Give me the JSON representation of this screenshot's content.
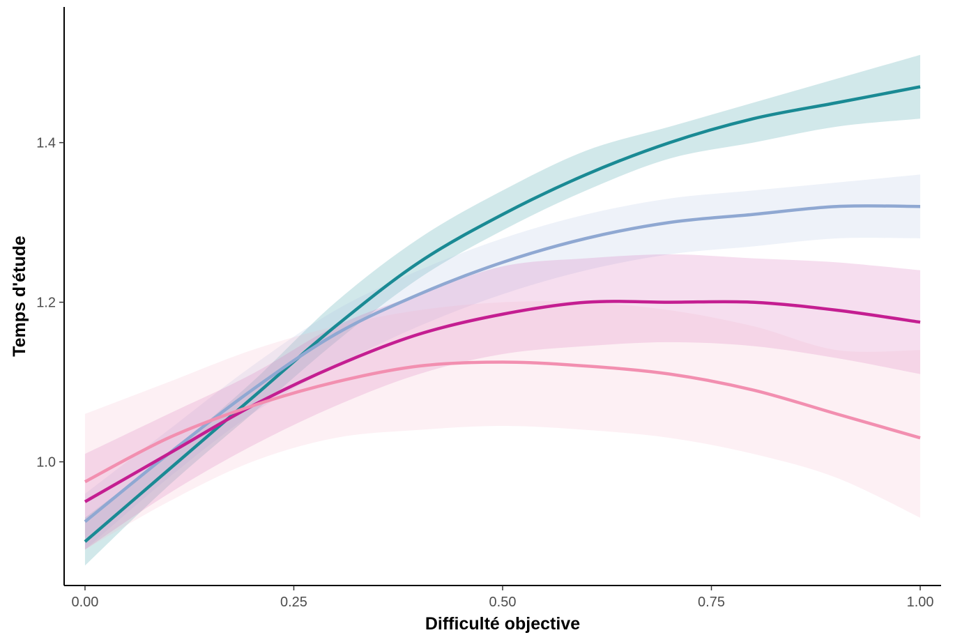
{
  "chart_data": {
    "type": "line",
    "title": "",
    "xlabel": "Difficulté objective",
    "ylabel": "Temps d'étude",
    "xlim": [
      -0.025,
      1.025
    ],
    "ylim": [
      0.845,
      1.57
    ],
    "x_ticks": [
      0,
      0.25,
      0.5,
      0.75,
      1
    ],
    "x_tick_labels": [
      "0.00",
      "0.25",
      "0.50",
      "0.75",
      "1.00"
    ],
    "y_ticks": [
      1.0,
      1.2,
      1.4
    ],
    "y_tick_labels": [
      "1.0",
      "1.2",
      "1.4"
    ],
    "grid": false,
    "legend": "none",
    "x": [
      0,
      0.1,
      0.2,
      0.3,
      0.4,
      0.5,
      0.6,
      0.7,
      0.8,
      0.9,
      1.0
    ],
    "series": [
      {
        "color": "#1a8a94",
        "band_color": "#1a8a94",
        "values": [
          0.9,
          0.99,
          1.08,
          1.17,
          1.25,
          1.31,
          1.36,
          1.4,
          1.43,
          1.45,
          1.47
        ],
        "lower": [
          0.87,
          0.97,
          1.06,
          1.15,
          1.23,
          1.29,
          1.34,
          1.38,
          1.4,
          1.42,
          1.43
        ],
        "upper": [
          0.93,
          1.01,
          1.1,
          1.2,
          1.28,
          1.34,
          1.39,
          1.42,
          1.45,
          1.48,
          1.51
        ]
      },
      {
        "color": "#8fa8d2",
        "band_color": "#a8bde0",
        "values": [
          0.925,
          1.01,
          1.09,
          1.16,
          1.21,
          1.25,
          1.28,
          1.3,
          1.31,
          1.32,
          1.32
        ],
        "lower": [
          0.89,
          0.98,
          1.06,
          1.12,
          1.17,
          1.21,
          1.24,
          1.26,
          1.27,
          1.28,
          1.28
        ],
        "upper": [
          0.96,
          1.04,
          1.12,
          1.19,
          1.24,
          1.28,
          1.31,
          1.33,
          1.34,
          1.35,
          1.36
        ]
      },
      {
        "color": "#c41e91",
        "band_color": "#d45ab0",
        "values": [
          0.95,
          1.01,
          1.07,
          1.12,
          1.16,
          1.185,
          1.2,
          1.2,
          1.2,
          1.19,
          1.175
        ],
        "lower": [
          0.89,
          0.96,
          1.02,
          1.07,
          1.11,
          1.135,
          1.145,
          1.15,
          1.145,
          1.13,
          1.11
        ],
        "upper": [
          1.01,
          1.06,
          1.11,
          1.17,
          1.21,
          1.245,
          1.255,
          1.26,
          1.255,
          1.25,
          1.24
        ]
      },
      {
        "color": "#f28fb0",
        "band_color": "#f7b3c8",
        "values": [
          0.975,
          1.03,
          1.07,
          1.1,
          1.12,
          1.125,
          1.12,
          1.11,
          1.09,
          1.06,
          1.03
        ],
        "lower": [
          0.89,
          0.95,
          1.0,
          1.03,
          1.04,
          1.045,
          1.04,
          1.03,
          1.01,
          0.98,
          0.93
        ],
        "upper": [
          1.06,
          1.1,
          1.14,
          1.17,
          1.19,
          1.2,
          1.2,
          1.19,
          1.17,
          1.14,
          1.14
        ]
      }
    ]
  }
}
